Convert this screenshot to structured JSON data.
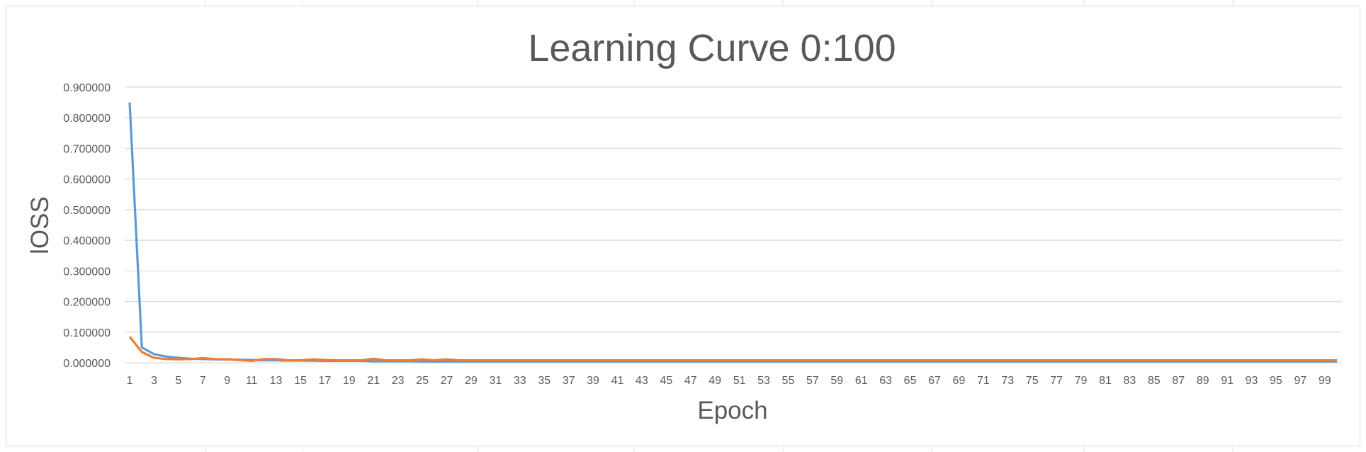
{
  "chart_data": {
    "type": "line",
    "title": "Learning Curve 0:100",
    "xlabel": "Epoch",
    "ylabel": "lOSS",
    "x_range": [
      1,
      100
    ],
    "x_tick_labels": [
      "1",
      "3",
      "5",
      "7",
      "9",
      "11",
      "13",
      "15",
      "17",
      "19",
      "21",
      "23",
      "25",
      "27",
      "29",
      "31",
      "33",
      "35",
      "37",
      "39",
      "41",
      "43",
      "45",
      "47",
      "49",
      "51",
      "53",
      "55",
      "57",
      "59",
      "61",
      "63",
      "65",
      "67",
      "69",
      "71",
      "73",
      "75",
      "77",
      "79",
      "81",
      "83",
      "85",
      "87",
      "89",
      "91",
      "93",
      "95",
      "97",
      "99"
    ],
    "ylim": [
      0,
      0.9
    ],
    "y_tick_labels": [
      "0.000000",
      "0.100000",
      "0.200000",
      "0.300000",
      "0.400000",
      "0.500000",
      "0.600000",
      "0.700000",
      "0.800000",
      "0.900000"
    ],
    "grid": true,
    "legend": "none",
    "series": [
      {
        "color": "#5b9bd5",
        "values": [
          0.85,
          0.05,
          0.028,
          0.02,
          0.016,
          0.013,
          0.012,
          0.011,
          0.011,
          0.01,
          0.009,
          0.008,
          0.008,
          0.007,
          0.007,
          0.007,
          0.006,
          0.006,
          0.006,
          0.006,
          0.005,
          0.005,
          0.005,
          0.005,
          0.004,
          0.004,
          0.004,
          0.004,
          0.004,
          0.004,
          0.004,
          0.004,
          0.004,
          0.004,
          0.004,
          0.004,
          0.004,
          0.004,
          0.004,
          0.004,
          0.004,
          0.004,
          0.004,
          0.004,
          0.004,
          0.004,
          0.004,
          0.004,
          0.004,
          0.004,
          0.004,
          0.004,
          0.004,
          0.004,
          0.004,
          0.004,
          0.004,
          0.004,
          0.004,
          0.004,
          0.004,
          0.004,
          0.004,
          0.004,
          0.004,
          0.004,
          0.004,
          0.004,
          0.004,
          0.004,
          0.004,
          0.004,
          0.004,
          0.004,
          0.004,
          0.004,
          0.004,
          0.004,
          0.004,
          0.004,
          0.004,
          0.004,
          0.004,
          0.004,
          0.004,
          0.004,
          0.004,
          0.004,
          0.004,
          0.004,
          0.004,
          0.004,
          0.004,
          0.004,
          0.004,
          0.004,
          0.004,
          0.004,
          0.004,
          0.004
        ]
      },
      {
        "color": "#ed7d31",
        "values": [
          0.085,
          0.035,
          0.016,
          0.012,
          0.011,
          0.012,
          0.015,
          0.012,
          0.011,
          0.009,
          0.006,
          0.012,
          0.012,
          0.008,
          0.008,
          0.011,
          0.009,
          0.008,
          0.008,
          0.008,
          0.013,
          0.008,
          0.008,
          0.008,
          0.011,
          0.008,
          0.011,
          0.008,
          0.008,
          0.008,
          0.008,
          0.008,
          0.008,
          0.008,
          0.008,
          0.008,
          0.008,
          0.008,
          0.008,
          0.008,
          0.008,
          0.008,
          0.008,
          0.008,
          0.008,
          0.008,
          0.008,
          0.008,
          0.008,
          0.008,
          0.008,
          0.008,
          0.008,
          0.008,
          0.008,
          0.008,
          0.008,
          0.008,
          0.008,
          0.008,
          0.008,
          0.008,
          0.008,
          0.008,
          0.008,
          0.008,
          0.008,
          0.008,
          0.008,
          0.008,
          0.008,
          0.008,
          0.008,
          0.008,
          0.008,
          0.008,
          0.008,
          0.008,
          0.008,
          0.008,
          0.008,
          0.008,
          0.008,
          0.008,
          0.008,
          0.008,
          0.008,
          0.008,
          0.008,
          0.008,
          0.008,
          0.008,
          0.008,
          0.008,
          0.008,
          0.008,
          0.008,
          0.008,
          0.008,
          0.008
        ]
      }
    ]
  }
}
